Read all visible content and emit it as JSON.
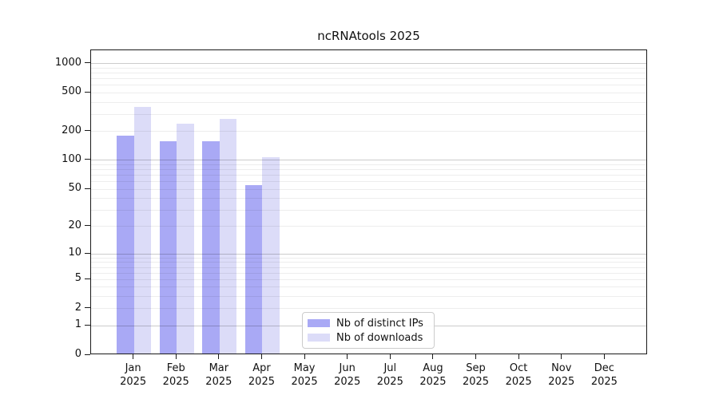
{
  "figure": {
    "background": "#ffffff"
  },
  "chart_data": {
    "type": "bar",
    "title": "ncRNAtools 2025",
    "categories": [
      "Jan\n2025",
      "Feb\n2025",
      "Mar\n2025",
      "Apr\n2025",
      "May\n2025",
      "Jun\n2025",
      "Jul\n2025",
      "Aug\n2025",
      "Sep\n2025",
      "Oct\n2025",
      "Nov\n2025",
      "Dec\n2025"
    ],
    "series": [
      {
        "name": "Nb of distinct IPs",
        "color": "#a9a9f5",
        "values": [
          175,
          152,
          152,
          53,
          null,
          null,
          null,
          null,
          null,
          null,
          null,
          null
        ]
      },
      {
        "name": "Nb of downloads",
        "color": "#dcdcf8",
        "values": [
          345,
          232,
          258,
          103,
          null,
          null,
          null,
          null,
          null,
          null,
          null,
          null
        ]
      }
    ],
    "xlabel": "",
    "ylabel": "",
    "y_axis": {
      "scale": "log1p",
      "ticks": [
        0,
        1,
        2,
        5,
        10,
        20,
        50,
        100,
        200,
        500,
        1000
      ],
      "limit_top": 1370
    },
    "x_axis": {
      "slots": 13
    },
    "grid": {
      "horizontal": true,
      "minor_lines": true,
      "major_lines": true
    },
    "legend": {
      "position": "inside-bottom-center"
    }
  }
}
